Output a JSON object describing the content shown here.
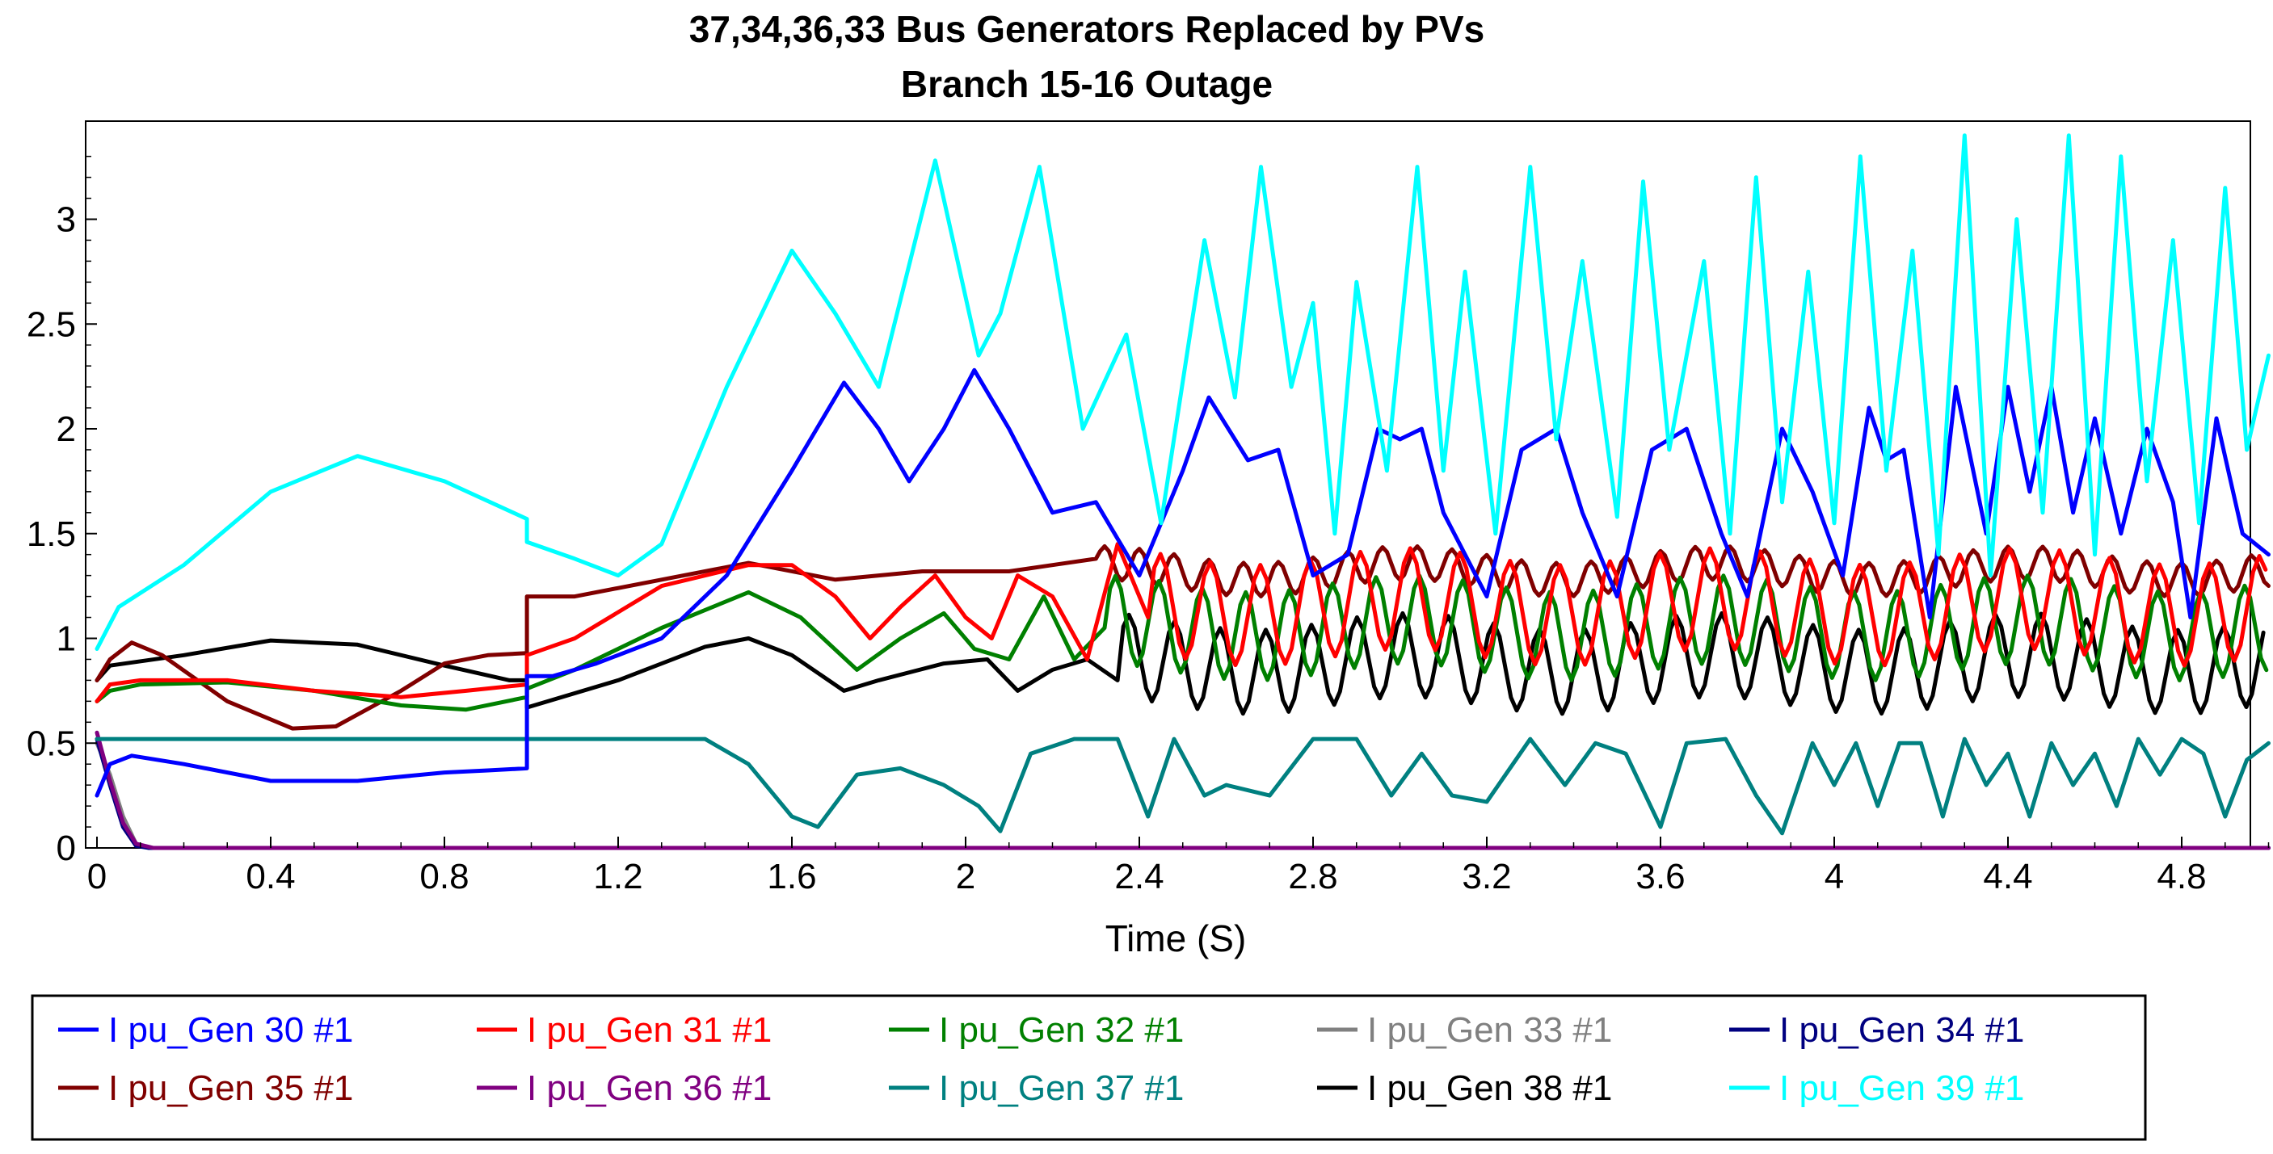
{
  "chart_data": {
    "type": "line",
    "title": "37,34,36,33  Bus Generators Replaced by PVs",
    "subtitle": "Branch 15-16 Outage",
    "xlabel": "Time (S)",
    "ylabel": "",
    "xlim": [
      0,
      5
    ],
    "ylim": [
      0,
      3.4
    ],
    "xticks": [
      "0",
      "0.4",
      "0.8",
      "1.2",
      "1.6",
      "2",
      "2.4",
      "2.8",
      "3.2",
      "3.6",
      "4",
      "4.4",
      "4.8"
    ],
    "yticks": [
      "0",
      "0.5",
      "1",
      "1.5",
      "2",
      "2.5",
      "3"
    ],
    "legend_position": "bottom",
    "series": [
      {
        "name": "I pu_Gen 30 #1",
        "color": "#0000ff",
        "x": [
          0,
          0.03,
          0.08,
          0.2,
          0.4,
          0.6,
          0.8,
          0.9,
          0.99,
          0.99,
          1.05,
          1.15,
          1.3,
          1.45,
          1.6,
          1.72,
          1.8,
          1.87,
          1.95,
          2.02,
          2.1,
          2.2,
          2.3,
          2.4,
          2.5,
          2.56,
          2.65,
          2.72,
          2.8,
          2.88,
          2.95,
          3.0,
          3.05,
          3.1,
          3.2,
          3.28,
          3.36,
          3.42,
          3.5,
          3.58,
          3.66,
          3.74,
          3.8,
          3.88,
          3.95,
          4.02,
          4.08,
          4.12,
          4.16,
          4.22,
          4.28,
          4.35,
          4.4,
          4.45,
          4.5,
          4.55,
          4.6,
          4.66,
          4.72,
          4.78,
          4.82,
          4.88,
          4.94,
          5.0
        ],
        "y": [
          0.25,
          0.4,
          0.44,
          0.4,
          0.32,
          0.32,
          0.36,
          0.37,
          0.38,
          0.82,
          0.82,
          0.88,
          1.0,
          1.3,
          1.8,
          2.22,
          2.0,
          1.75,
          2.0,
          2.28,
          2.0,
          1.6,
          1.65,
          1.3,
          1.8,
          2.15,
          1.85,
          1.9,
          1.3,
          1.4,
          2.0,
          1.95,
          2.0,
          1.6,
          1.2,
          1.9,
          2.0,
          1.6,
          1.2,
          1.9,
          2.0,
          1.5,
          1.2,
          2.0,
          1.7,
          1.3,
          2.1,
          1.85,
          1.9,
          1.1,
          2.2,
          1.5,
          2.2,
          1.7,
          2.2,
          1.6,
          2.05,
          1.5,
          2.0,
          1.65,
          1.1,
          2.05,
          1.5,
          1.4
        ]
      },
      {
        "name": "I pu_Gen 31 #1",
        "color": "#ff0000",
        "x": [
          0,
          0.03,
          0.1,
          0.3,
          0.5,
          0.7,
          0.85,
          0.99,
          0.99,
          1.1,
          1.3,
          1.5,
          1.6,
          1.7,
          1.78,
          1.85,
          1.93,
          2.0,
          2.06,
          2.12,
          2.2,
          2.28,
          2.35,
          2.42
        ],
        "y": [
          0.7,
          0.78,
          0.8,
          0.8,
          0.75,
          0.72,
          0.75,
          0.78,
          0.92,
          1.0,
          1.25,
          1.35,
          1.35,
          1.2,
          1.0,
          1.15,
          1.3,
          1.1,
          1.0,
          1.3,
          1.2,
          0.9,
          1.45,
          1.1
        ],
        "osc_from": 2.42,
        "osc_to": 5.0,
        "osc_period": 0.115,
        "osc_center": 1.15,
        "osc_amp": 0.24
      },
      {
        "name": "I pu_Gen 32 #1",
        "color": "#008000",
        "x": [
          0,
          0.03,
          0.1,
          0.3,
          0.5,
          0.7,
          0.85,
          0.99,
          0.99,
          1.1,
          1.3,
          1.5,
          1.62,
          1.75,
          1.85,
          1.95,
          2.02,
          2.1,
          2.18,
          2.25,
          2.32
        ],
        "y": [
          0.7,
          0.75,
          0.78,
          0.79,
          0.75,
          0.68,
          0.66,
          0.72,
          0.76,
          0.85,
          1.05,
          1.22,
          1.1,
          0.85,
          1.0,
          1.12,
          0.95,
          0.9,
          1.2,
          0.9,
          1.05
        ],
        "osc_from": 2.32,
        "osc_to": 5.0,
        "osc_period": 0.1,
        "osc_center": 1.05,
        "osc_amp": 0.21
      },
      {
        "name": "I pu_Gen 33 #1",
        "color": "#808080",
        "x": [
          0,
          0.03,
          0.06,
          0.09,
          0.12,
          5.0
        ],
        "y": [
          0.5,
          0.35,
          0.15,
          0.02,
          0,
          0
        ]
      },
      {
        "name": "I pu_Gen 34 #1",
        "color": "#000080",
        "x": [
          0,
          0.03,
          0.06,
          0.09,
          0.12,
          5.0
        ],
        "y": [
          0.52,
          0.3,
          0.1,
          0.01,
          0,
          0
        ]
      },
      {
        "name": "I pu_Gen 35 #1",
        "color": "#800000",
        "x": [
          0,
          0.03,
          0.08,
          0.15,
          0.3,
          0.45,
          0.55,
          0.7,
          0.8,
          0.9,
          0.99,
          0.99,
          1.1,
          1.3,
          1.5,
          1.7,
          1.9,
          2.1,
          2.2,
          2.3
        ],
        "y": [
          0.8,
          0.9,
          0.98,
          0.92,
          0.7,
          0.57,
          0.58,
          0.75,
          0.88,
          0.92,
          0.93,
          1.2,
          1.2,
          1.28,
          1.36,
          1.28,
          1.32,
          1.32,
          1.35,
          1.38
        ],
        "osc_from": 2.3,
        "osc_to": 5.0,
        "osc_period": 0.08,
        "osc_center": 1.32,
        "osc_amp": 0.08
      },
      {
        "name": "I pu_Gen 36 #1",
        "color": "#800080",
        "x": [
          0,
          0.03,
          0.06,
          0.09,
          0.13,
          5.0
        ],
        "y": [
          0.55,
          0.32,
          0.12,
          0.02,
          0,
          0
        ]
      },
      {
        "name": "I pu_Gen 37 #1",
        "color": "#008080",
        "x": [
          0,
          1.4,
          1.5,
          1.6,
          1.66,
          1.75,
          1.85,
          1.95,
          2.03,
          2.08,
          2.15,
          2.25,
          2.35,
          2.42,
          2.48,
          2.55,
          2.6,
          2.7,
          2.8,
          2.9,
          2.98,
          3.05,
          3.12,
          3.2,
          3.3,
          3.38,
          3.45,
          3.52,
          3.6,
          3.66,
          3.75,
          3.82,
          3.88,
          3.95,
          4.0,
          4.05,
          4.1,
          4.15,
          4.2,
          4.25,
          4.3,
          4.35,
          4.4,
          4.45,
          4.5,
          4.55,
          4.6,
          4.65,
          4.7,
          4.75,
          4.8,
          4.85,
          4.9,
          4.95,
          5.0
        ],
        "y": [
          0.52,
          0.52,
          0.4,
          0.15,
          0.1,
          0.35,
          0.38,
          0.3,
          0.2,
          0.08,
          0.45,
          0.52,
          0.52,
          0.15,
          0.52,
          0.25,
          0.3,
          0.25,
          0.52,
          0.52,
          0.25,
          0.45,
          0.25,
          0.22,
          0.52,
          0.3,
          0.5,
          0.45,
          0.1,
          0.5,
          0.52,
          0.25,
          0.07,
          0.5,
          0.3,
          0.5,
          0.2,
          0.5,
          0.5,
          0.15,
          0.52,
          0.3,
          0.45,
          0.15,
          0.5,
          0.3,
          0.45,
          0.2,
          0.52,
          0.35,
          0.52,
          0.45,
          0.15,
          0.42,
          0.5
        ]
      },
      {
        "name": "I pu_Gen 38 #1",
        "color": "#000000",
        "x": [
          0,
          0.03,
          0.2,
          0.4,
          0.6,
          0.8,
          0.95,
          0.99,
          0.99,
          1.2,
          1.4,
          1.5,
          1.6,
          1.72,
          1.8,
          1.95,
          2.05,
          2.12,
          2.2,
          2.28,
          2.35
        ],
        "y": [
          0.8,
          0.87,
          0.92,
          0.99,
          0.97,
          0.87,
          0.8,
          0.8,
          0.67,
          0.8,
          0.96,
          1.0,
          0.92,
          0.75,
          0.8,
          0.88,
          0.9,
          0.75,
          0.85,
          0.9,
          0.8
        ],
        "osc_from": 2.35,
        "osc_to": 5.0,
        "osc_period": 0.105,
        "osc_center": 0.88,
        "osc_amp": 0.2
      },
      {
        "name": "I pu_Gen 39 #1",
        "color": "#00ffff",
        "x": [
          0,
          0.05,
          0.2,
          0.4,
          0.6,
          0.8,
          0.99,
          0.99,
          1.1,
          1.2,
          1.3,
          1.45,
          1.6,
          1.7,
          1.8,
          1.93,
          2.03,
          2.08,
          2.17,
          2.27,
          2.37,
          2.45,
          2.55,
          2.62,
          2.68,
          2.75,
          2.8,
          2.85,
          2.9,
          2.97,
          3.04,
          3.1,
          3.15,
          3.22,
          3.3,
          3.36,
          3.42,
          3.5,
          3.56,
          3.62,
          3.7,
          3.76,
          3.82,
          3.88,
          3.94,
          4.0,
          4.06,
          4.12,
          4.18,
          4.24,
          4.3,
          4.36,
          4.42,
          4.48,
          4.54,
          4.6,
          4.66,
          4.72,
          4.78,
          4.84,
          4.9,
          4.95,
          5.0
        ],
        "y": [
          0.95,
          1.15,
          1.35,
          1.7,
          1.87,
          1.75,
          1.57,
          1.46,
          1.38,
          1.3,
          1.45,
          2.2,
          2.85,
          2.55,
          2.2,
          3.28,
          2.35,
          2.55,
          3.25,
          2.0,
          2.45,
          1.55,
          2.9,
          2.15,
          3.25,
          2.2,
          2.6,
          1.5,
          2.7,
          1.8,
          3.25,
          1.8,
          2.75,
          1.5,
          3.25,
          1.95,
          2.8,
          1.58,
          3.18,
          1.9,
          2.8,
          1.5,
          3.2,
          1.65,
          2.75,
          1.55,
          3.3,
          1.8,
          2.85,
          1.4,
          3.4,
          1.3,
          3.0,
          1.6,
          3.4,
          1.4,
          3.3,
          1.75,
          2.9,
          1.55,
          3.15,
          1.9,
          2.35
        ]
      }
    ]
  }
}
